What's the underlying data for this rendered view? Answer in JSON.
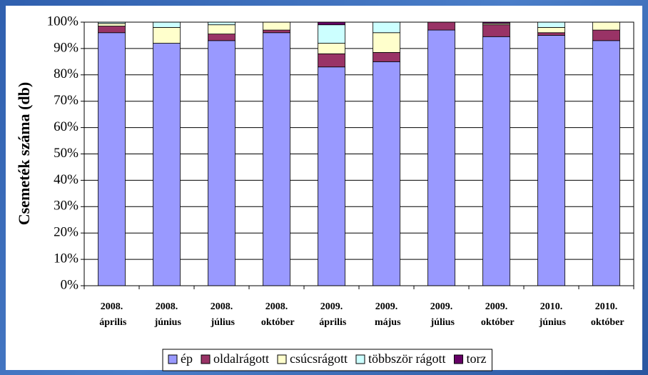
{
  "chart_data": {
    "type": "stacked_bar_percent",
    "y_label": "Csemeték száma (db)",
    "categories": [
      "2008. április",
      "2008. június",
      "2008. július",
      "2008. október",
      "2009. április",
      "2009. május",
      "2009. július",
      "2009. október",
      "2010. június",
      "2010. október"
    ],
    "series": [
      {
        "name": "ép",
        "color": "#9999ff",
        "values": [
          96,
          92,
          93,
          96,
          83,
          85,
          97,
          94.5,
          95,
          93
        ]
      },
      {
        "name": "oldalrágott",
        "color": "#993366",
        "values": [
          2.5,
          0,
          2.5,
          1,
          5,
          3.5,
          3,
          4.5,
          1,
          4
        ]
      },
      {
        "name": "csúcsrágott",
        "color": "#ffffcc",
        "values": [
          1,
          6,
          3.5,
          3,
          4,
          7.5,
          0,
          0.5,
          2,
          3
        ]
      },
      {
        "name": "többször rágott",
        "color": "#ccffff",
        "values": [
          0.5,
          2,
          1,
          0,
          7,
          4,
          0,
          0,
          2,
          0
        ]
      },
      {
        "name": "torz",
        "color": "#660066",
        "values": [
          0,
          0,
          0,
          0,
          1,
          0,
          0,
          0.5,
          0,
          0
        ]
      }
    ],
    "ylim": [
      0,
      100
    ],
    "yticks": [
      {
        "value": 0,
        "label": "0%"
      },
      {
        "value": 10,
        "label": "10%"
      },
      {
        "value": 20,
        "label": "20%"
      },
      {
        "value": 30,
        "label": "30%"
      },
      {
        "value": 40,
        "label": "40%"
      },
      {
        "value": 50,
        "label": "50%"
      },
      {
        "value": 60,
        "label": "60%"
      },
      {
        "value": 70,
        "label": "70%"
      },
      {
        "value": 80,
        "label": "80%"
      },
      {
        "value": 90,
        "label": "90%"
      },
      {
        "value": 100,
        "label": "100%"
      }
    ],
    "grid": true
  }
}
